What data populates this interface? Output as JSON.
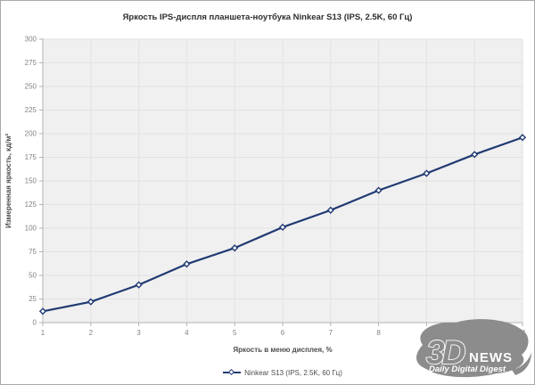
{
  "page": {
    "background": "#ffffff",
    "border_color": "#a9a9a9"
  },
  "chart_data": {
    "type": "line",
    "title": "Яркость IPS-диспля планшета-ноутбука Ninkear S13 (IPS, 2.5K, 60 Гц)",
    "xlabel": "Яркость в меню дисплея, %",
    "ylabel": "Измеренная яркость, кд/м²",
    "x": [
      1,
      2,
      3,
      4,
      5,
      6,
      7,
      8,
      9,
      10,
      11
    ],
    "series": [
      {
        "name": "Ninkear S13 (IPS, 2.5K, 60 Гц)",
        "values": [
          12,
          22,
          40,
          62,
          79,
          101,
          119,
          140,
          158,
          178,
          196
        ],
        "color": "#203a72",
        "marker": "open-diamond"
      }
    ],
    "ylim": [
      0,
      300
    ],
    "ytick_step": 25,
    "grid": true,
    "legend_position": "bottom",
    "plot_bg": "#f0f0f0",
    "grid_color": "#e2e2e2",
    "axis_color": "#b3b3b3",
    "tick_label_color": "#828282"
  },
  "watermark": {
    "brand_top": "3D",
    "brand_right": "NEWS",
    "tagline": "Daily Digital Digest",
    "color": "#8c8c8c"
  }
}
